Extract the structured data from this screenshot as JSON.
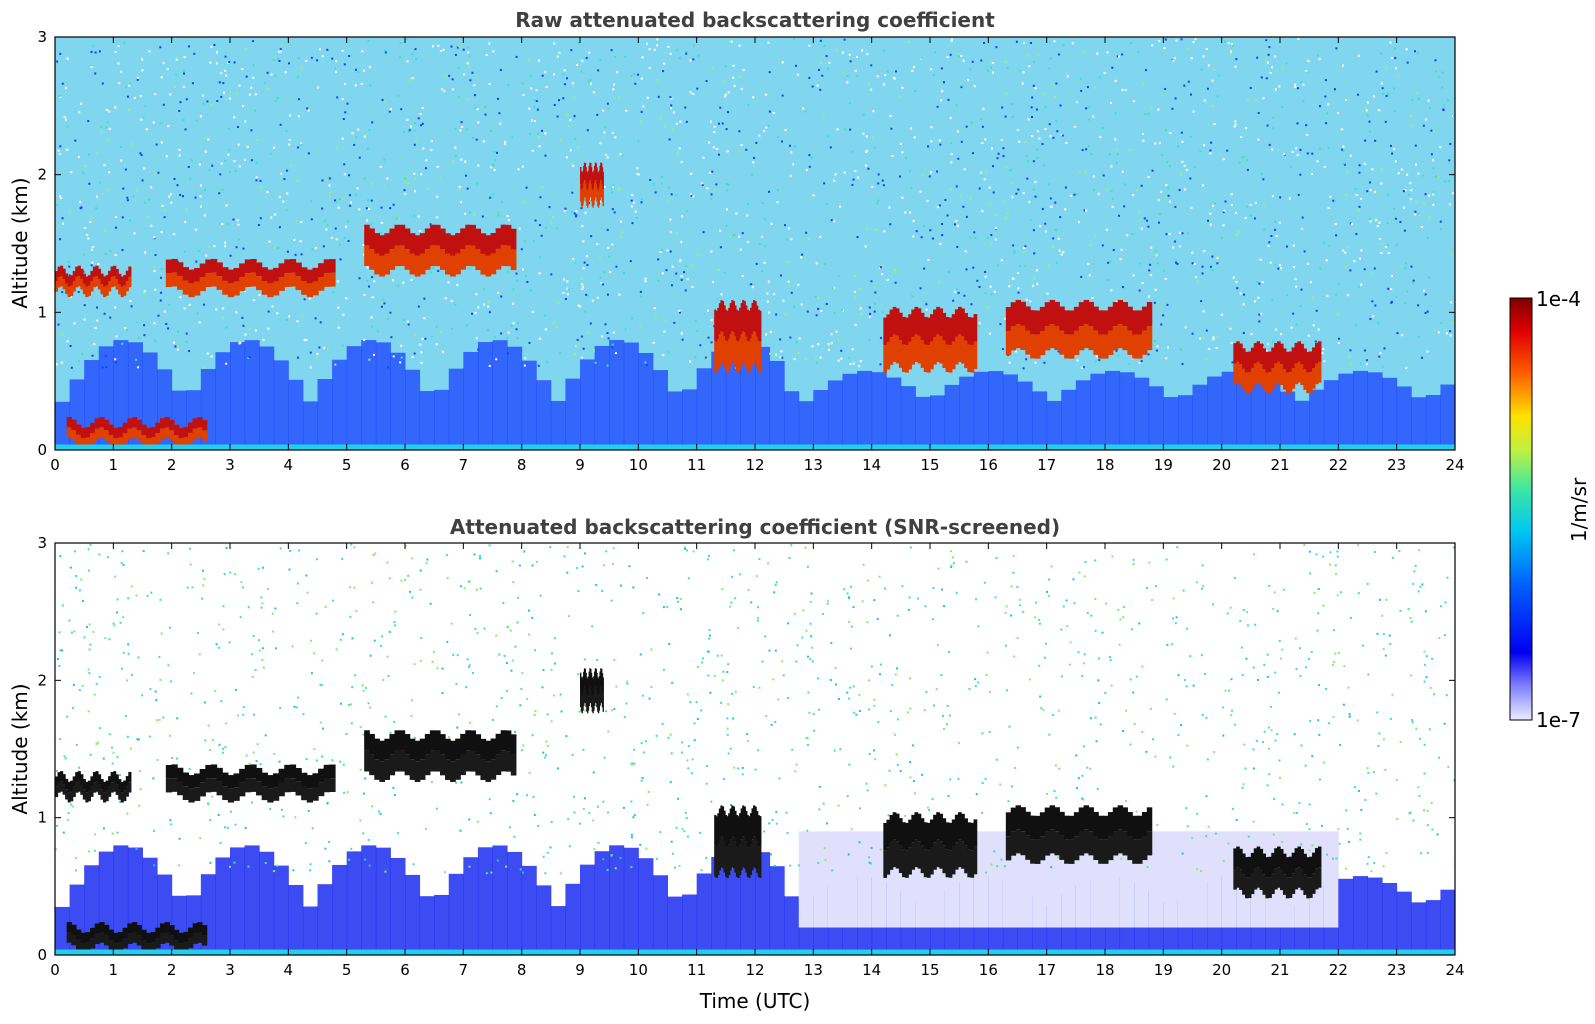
{
  "chart_data": [
    {
      "type": "heatmap",
      "title": "Raw attenuated backscattering coefficient",
      "xlabel": "",
      "ylabel": "Altitude (km)",
      "xlim": [
        0,
        24
      ],
      "ylim": [
        0,
        3
      ],
      "x_ticks": [
        "0",
        "1",
        "2",
        "3",
        "4",
        "5",
        "6",
        "7",
        "8",
        "9",
        "10",
        "11",
        "12",
        "13",
        "14",
        "15",
        "16",
        "17",
        "18",
        "19",
        "20",
        "21",
        "22",
        "23",
        "24"
      ],
      "y_ticks": [
        "0",
        "1",
        "2",
        "3"
      ],
      "cloud_layers": [
        {
          "t_start": 0.0,
          "t_end": 1.3,
          "base_km": 1.15,
          "top_km": 1.3
        },
        {
          "t_start": 1.9,
          "t_end": 4.8,
          "base_km": 1.15,
          "top_km": 1.35
        },
        {
          "t_start": 5.3,
          "t_end": 7.9,
          "base_km": 1.3,
          "top_km": 1.6
        },
        {
          "t_start": 9.0,
          "t_end": 9.4,
          "base_km": 1.8,
          "top_km": 2.05
        },
        {
          "t_start": 11.3,
          "t_end": 12.1,
          "base_km": 0.6,
          "top_km": 1.05
        },
        {
          "t_start": 14.2,
          "t_end": 15.8,
          "base_km": 0.6,
          "top_km": 1.0
        },
        {
          "t_start": 16.3,
          "t_end": 18.8,
          "base_km": 0.7,
          "top_km": 1.05
        },
        {
          "t_start": 20.2,
          "t_end": 21.7,
          "base_km": 0.45,
          "top_km": 0.75
        },
        {
          "t_start": 0.2,
          "t_end": 2.6,
          "base_km": 0.05,
          "top_km": 0.2
        }
      ]
    },
    {
      "type": "heatmap",
      "title": "Attenuated backscattering coefficient (SNR-screened)",
      "xlabel": "Time (UTC)",
      "ylabel": "Altitude (km)",
      "xlim": [
        0,
        24
      ],
      "ylim": [
        0,
        3
      ],
      "x_ticks": [
        "0",
        "1",
        "2",
        "3",
        "4",
        "5",
        "6",
        "7",
        "8",
        "9",
        "10",
        "11",
        "12",
        "13",
        "14",
        "15",
        "16",
        "17",
        "18",
        "19",
        "20",
        "21",
        "22",
        "23",
        "24"
      ],
      "y_ticks": [
        "0",
        "1",
        "2",
        "3"
      ]
    }
  ],
  "colorbar": {
    "label": "1/m/sr",
    "max_label": "1e-4",
    "min_label": "1e-7",
    "colors": [
      "#e8e8ff",
      "#0000e0",
      "#0080ff",
      "#00e0e0",
      "#60e060",
      "#ffe000",
      "#ff6000",
      "#e00000",
      "#800000"
    ]
  }
}
